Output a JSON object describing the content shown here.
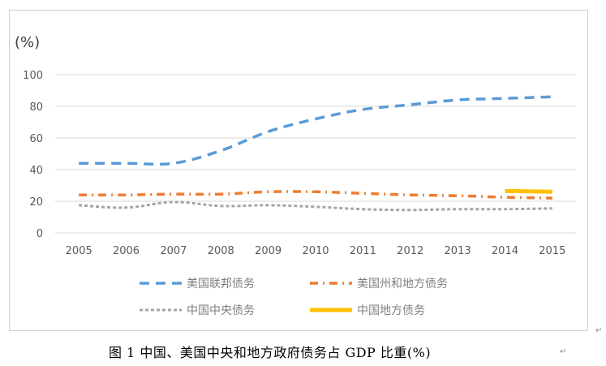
{
  "chart_data": {
    "type": "line",
    "y_unit_label": "(%)",
    "categories": [
      "2005",
      "2006",
      "2007",
      "2008",
      "2009",
      "2010",
      "2011",
      "2012",
      "2013",
      "2014",
      "2015"
    ],
    "ylim": [
      0,
      100
    ],
    "yticks": [
      0,
      20,
      40,
      60,
      80,
      100
    ],
    "grid": true,
    "legend_position": "bottom",
    "series": [
      {
        "name": "美国联邦债务",
        "color": "#5b9bd5",
        "dash": "long-dash",
        "values": [
          44,
          44,
          44,
          52,
          64,
          72,
          78,
          81,
          84,
          85,
          86
        ]
      },
      {
        "name": "美国州和地方债务",
        "color": "#ed7d31",
        "dash": "dash-dot",
        "values": [
          24,
          24,
          24.5,
          24.5,
          26,
          26,
          25,
          24,
          23.5,
          22.5,
          22
        ]
      },
      {
        "name": "中国中央债务",
        "color": "#a5a5a5",
        "dash": "short-dash",
        "values": [
          17.5,
          16,
          19.5,
          17,
          17.5,
          16.5,
          15,
          14.5,
          15,
          15,
          15.5
        ]
      },
      {
        "name": "中国地方债务",
        "color": "#ffc000",
        "dash": "solid",
        "values": [
          null,
          null,
          null,
          null,
          null,
          null,
          null,
          null,
          null,
          26.5,
          26
        ]
      }
    ]
  },
  "caption": "图 1   中国、美国中央和地方政府债务占 GDP 比重(%)",
  "paragraph_mark": "↵"
}
